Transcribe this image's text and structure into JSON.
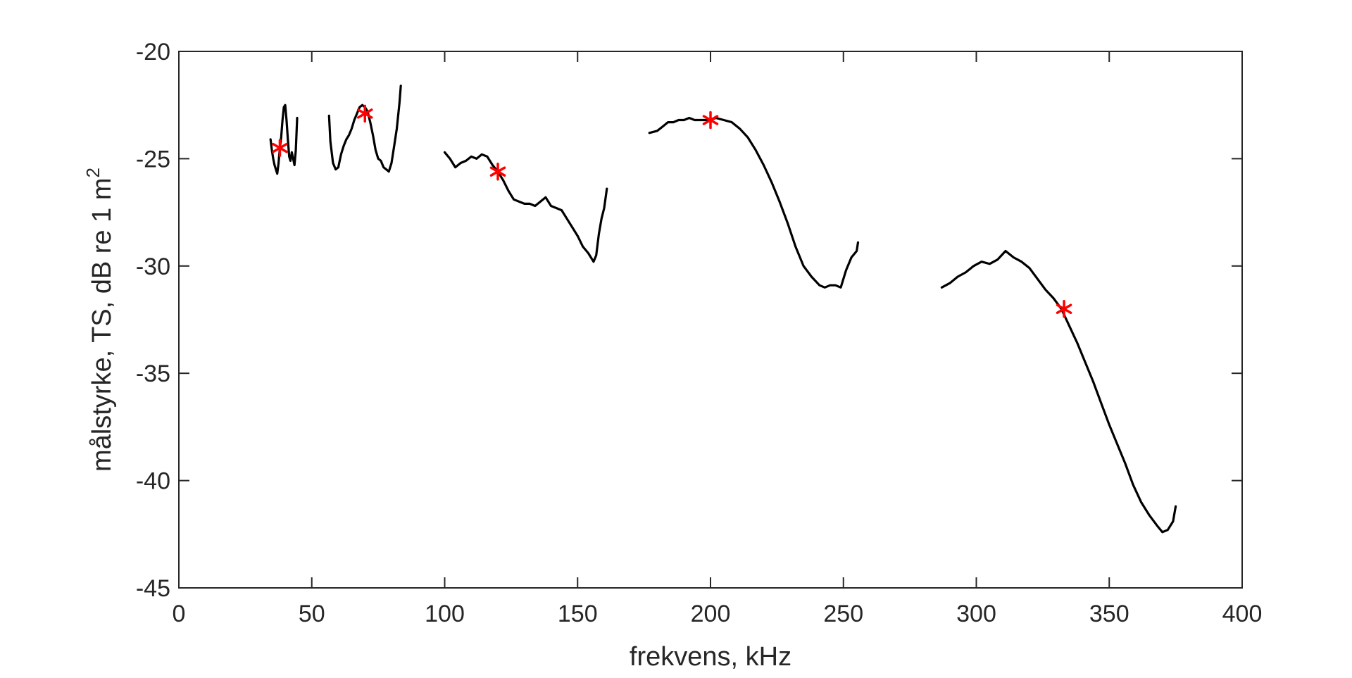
{
  "chart_data": {
    "type": "line",
    "title": "",
    "xlabel": "frekvens, kHz",
    "ylabel_main": "målstyrke, TS, dB re 1 m",
    "ylabel_superscript": "2",
    "xlim": [
      0,
      400
    ],
    "ylim": [
      -45,
      -20
    ],
    "x_ticks": [
      0,
      50,
      100,
      150,
      200,
      250,
      300,
      350,
      400
    ],
    "y_ticks": [
      -45,
      -40,
      -35,
      -30,
      -25,
      -20
    ],
    "grid": false,
    "legend": "none",
    "line_color": "#000000",
    "marker_color": "#ff0000",
    "series": [
      {
        "points": [
          [
            34.5,
            -24.1
          ],
          [
            35,
            -24.6
          ],
          [
            35.5,
            -25.0
          ],
          [
            36,
            -25.3
          ],
          [
            36.5,
            -25.5
          ],
          [
            37,
            -25.7
          ],
          [
            37.5,
            -25.2
          ],
          [
            38,
            -24.5
          ],
          [
            38.5,
            -24.0
          ],
          [
            39,
            -23.2
          ],
          [
            39.5,
            -22.6
          ],
          [
            40,
            -22.5
          ],
          [
            40.5,
            -23.2
          ],
          [
            41,
            -24.1
          ],
          [
            41.5,
            -24.9
          ],
          [
            42,
            -25.1
          ],
          [
            42.5,
            -24.7
          ],
          [
            43,
            -25.0
          ],
          [
            43.5,
            -25.3
          ],
          [
            44,
            -24.6
          ],
          [
            44.5,
            -23.1
          ]
        ]
      },
      {
        "points": [
          [
            56.5,
            -23.0
          ],
          [
            57,
            -24.2
          ],
          [
            58,
            -25.2
          ],
          [
            59,
            -25.5
          ],
          [
            60,
            -25.4
          ],
          [
            61,
            -24.8
          ],
          [
            62,
            -24.4
          ],
          [
            63,
            -24.1
          ],
          [
            64,
            -23.9
          ],
          [
            65,
            -23.6
          ],
          [
            66,
            -23.2
          ],
          [
            67,
            -22.9
          ],
          [
            68,
            -22.6
          ],
          [
            69,
            -22.5
          ],
          [
            70,
            -22.6
          ],
          [
            71,
            -22.8
          ],
          [
            72,
            -23.3
          ],
          [
            73,
            -23.9
          ],
          [
            74,
            -24.6
          ],
          [
            75,
            -25.0
          ],
          [
            76,
            -25.1
          ],
          [
            77,
            -25.4
          ],
          [
            78,
            -25.5
          ],
          [
            79,
            -25.6
          ],
          [
            80,
            -25.2
          ],
          [
            81,
            -24.4
          ],
          [
            82,
            -23.6
          ],
          [
            83,
            -22.4
          ],
          [
            83.5,
            -21.6
          ]
        ]
      },
      {
        "points": [
          [
            100,
            -24.7
          ],
          [
            102,
            -25.0
          ],
          [
            104,
            -25.4
          ],
          [
            106,
            -25.2
          ],
          [
            108,
            -25.1
          ],
          [
            110,
            -24.9
          ],
          [
            112,
            -25.0
          ],
          [
            114,
            -24.8
          ],
          [
            116,
            -24.9
          ],
          [
            118,
            -25.3
          ],
          [
            120,
            -25.6
          ],
          [
            122,
            -26.0
          ],
          [
            124,
            -26.5
          ],
          [
            126,
            -26.9
          ],
          [
            128,
            -27.0
          ],
          [
            130,
            -27.1
          ],
          [
            132,
            -27.1
          ],
          [
            134,
            -27.2
          ],
          [
            136,
            -27.0
          ],
          [
            138,
            -26.8
          ],
          [
            140,
            -27.2
          ],
          [
            142,
            -27.3
          ],
          [
            144,
            -27.4
          ],
          [
            146,
            -27.8
          ],
          [
            148,
            -28.2
          ],
          [
            150,
            -28.6
          ],
          [
            152,
            -29.1
          ],
          [
            154,
            -29.4
          ],
          [
            156,
            -29.8
          ],
          [
            157,
            -29.5
          ],
          [
            158,
            -28.5
          ],
          [
            159,
            -27.8
          ],
          [
            160,
            -27.3
          ],
          [
            161,
            -26.4
          ]
        ]
      },
      {
        "points": [
          [
            177,
            -23.8
          ],
          [
            180,
            -23.7
          ],
          [
            182,
            -23.5
          ],
          [
            184,
            -23.3
          ],
          [
            186,
            -23.3
          ],
          [
            188,
            -23.2
          ],
          [
            190,
            -23.2
          ],
          [
            192,
            -23.1
          ],
          [
            194,
            -23.2
          ],
          [
            196,
            -23.2
          ],
          [
            198,
            -23.2
          ],
          [
            200,
            -23.2
          ],
          [
            202,
            -23.1
          ],
          [
            205,
            -23.2
          ],
          [
            208,
            -23.3
          ],
          [
            211,
            -23.6
          ],
          [
            214,
            -24.0
          ],
          [
            217,
            -24.6
          ],
          [
            220,
            -25.3
          ],
          [
            223,
            -26.1
          ],
          [
            226,
            -27.0
          ],
          [
            229,
            -28.0
          ],
          [
            232,
            -29.1
          ],
          [
            235,
            -30.0
          ],
          [
            238,
            -30.5
          ],
          [
            241,
            -30.9
          ],
          [
            243,
            -31.0
          ],
          [
            245,
            -30.9
          ],
          [
            247,
            -30.9
          ],
          [
            249,
            -31.0
          ],
          [
            251,
            -30.2
          ],
          [
            253,
            -29.6
          ],
          [
            255,
            -29.3
          ],
          [
            255.5,
            -28.9
          ]
        ]
      },
      {
        "points": [
          [
            287,
            -31.0
          ],
          [
            290,
            -30.8
          ],
          [
            293,
            -30.5
          ],
          [
            296,
            -30.3
          ],
          [
            299,
            -30.0
          ],
          [
            302,
            -29.8
          ],
          [
            305,
            -29.9
          ],
          [
            308,
            -29.7
          ],
          [
            311,
            -29.3
          ],
          [
            314,
            -29.6
          ],
          [
            317,
            -29.8
          ],
          [
            320,
            -30.1
          ],
          [
            323,
            -30.6
          ],
          [
            326,
            -31.1
          ],
          [
            329,
            -31.5
          ],
          [
            332,
            -32.0
          ],
          [
            335,
            -32.8
          ],
          [
            338,
            -33.6
          ],
          [
            341,
            -34.5
          ],
          [
            344,
            -35.4
          ],
          [
            347,
            -36.4
          ],
          [
            350,
            -37.4
          ],
          [
            353,
            -38.3
          ],
          [
            356,
            -39.2
          ],
          [
            359,
            -40.2
          ],
          [
            362,
            -41.0
          ],
          [
            365,
            -41.6
          ],
          [
            368,
            -42.1
          ],
          [
            370,
            -42.4
          ],
          [
            372,
            -42.3
          ],
          [
            374,
            -41.9
          ],
          [
            375,
            -41.2
          ]
        ]
      }
    ],
    "markers": [
      {
        "x": 38,
        "y": -24.5
      },
      {
        "x": 70,
        "y": -22.9
      },
      {
        "x": 120,
        "y": -25.6
      },
      {
        "x": 200,
        "y": -23.2
      },
      {
        "x": 333,
        "y": -32.0
      }
    ]
  }
}
